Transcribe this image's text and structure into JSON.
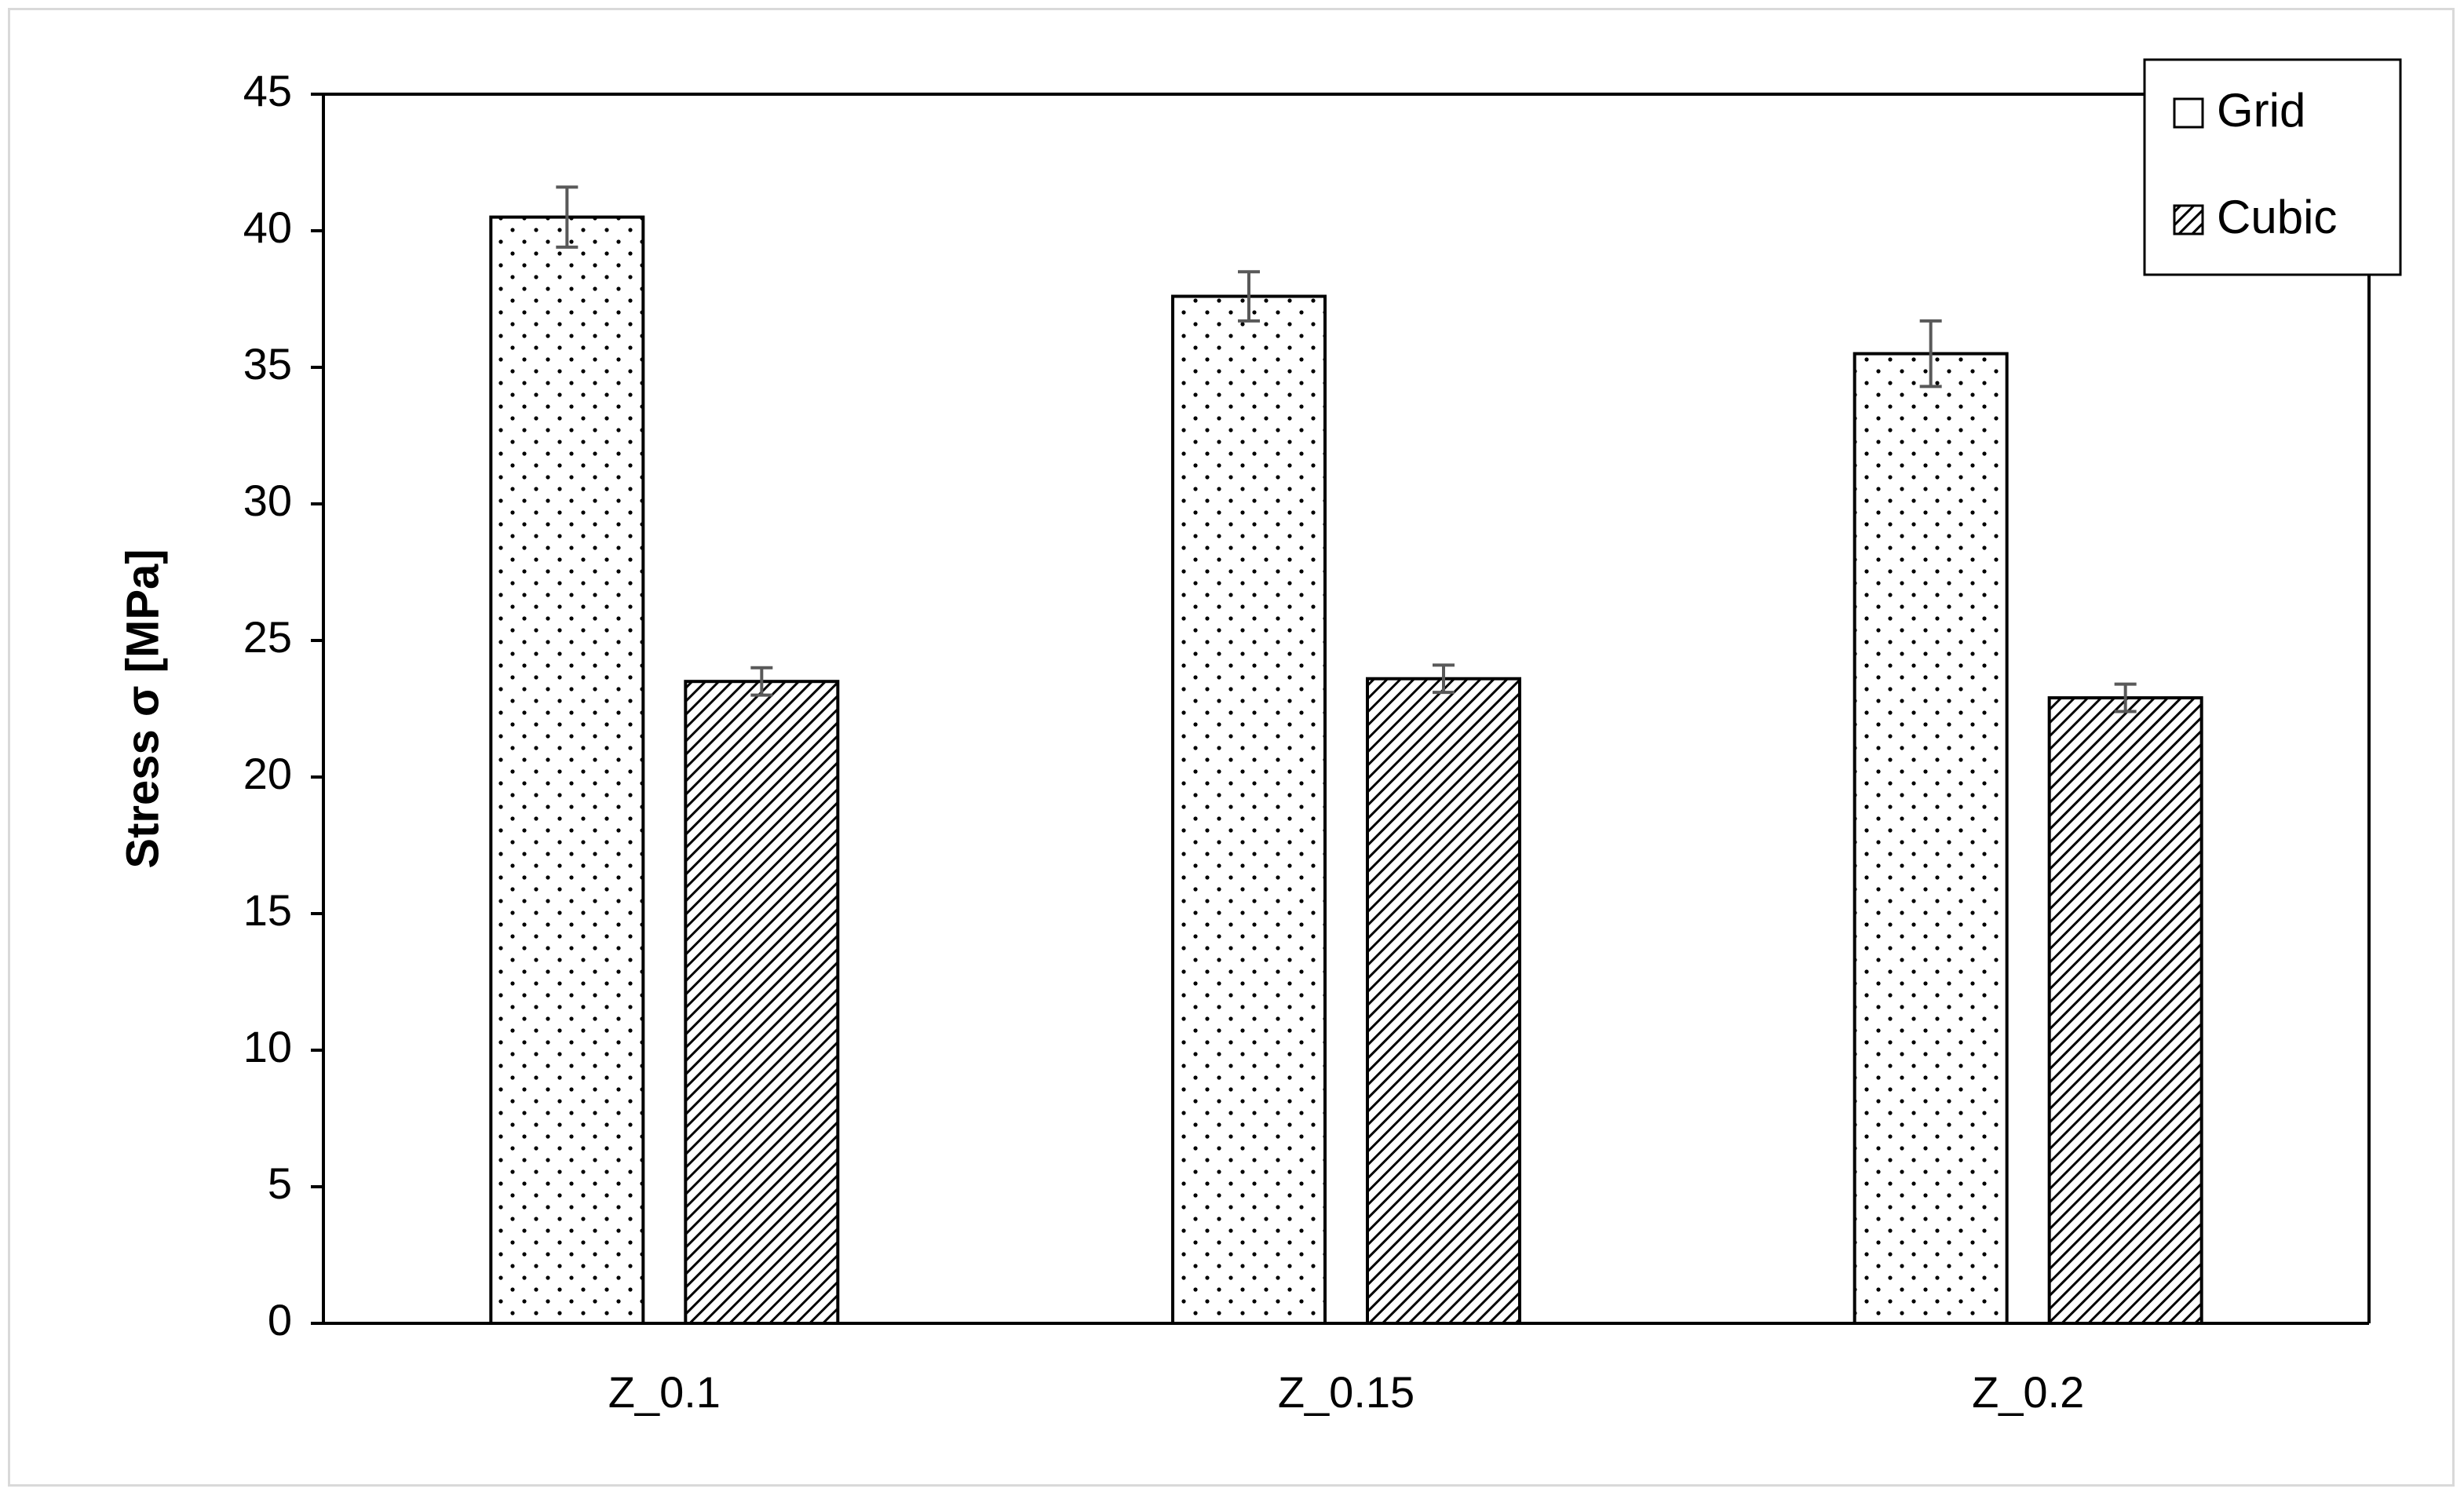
{
  "chart_data": {
    "type": "bar",
    "categories": [
      "Z_0.1",
      "Z_0.15",
      "Z_0.2"
    ],
    "series": [
      {
        "name": "Grid",
        "values": [
          40.5,
          37.6,
          35.5
        ],
        "error": [
          1.1,
          0.9,
          1.2
        ],
        "pattern": "dots"
      },
      {
        "name": "Cubic",
        "values": [
          23.5,
          23.6,
          22.9
        ],
        "error": [
          0.5,
          0.5,
          0.5
        ],
        "pattern": "diagonal-hatch"
      }
    ],
    "title": "",
    "xlabel": "",
    "ylabel": "Stress σ [MPa]",
    "ylim": [
      0,
      45
    ],
    "yticks": [
      0,
      5,
      10,
      15,
      20,
      25,
      30,
      35,
      40,
      45
    ],
    "grid": false,
    "legend_position": "top-right",
    "colors": {
      "bar_fill": "#ffffff",
      "bar_stroke": "#000000",
      "pattern": "#000000",
      "error_bar": "#595959",
      "frame": "#d9d9d9"
    }
  }
}
